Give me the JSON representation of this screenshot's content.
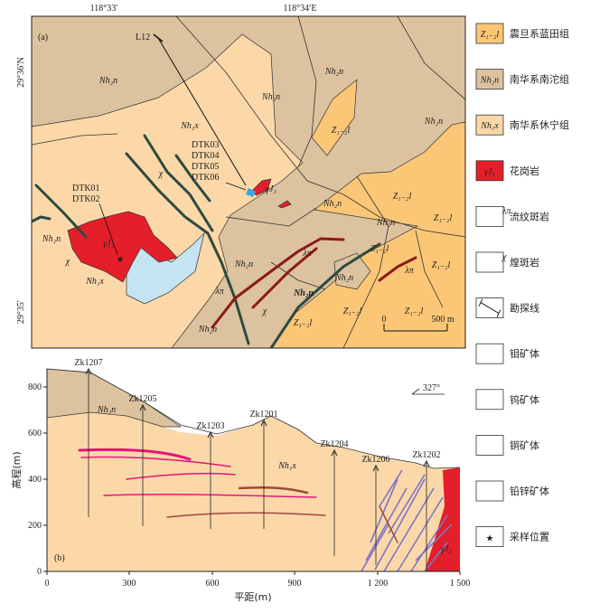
{
  "map": {
    "panel_label": "(a)",
    "lon_labels": [
      "118°33′",
      "118°34′E"
    ],
    "lat_labels": [
      "29°36′N",
      "29°35′"
    ],
    "units": [
      "Nh₂n",
      "Nh₂n",
      "Nh₂n",
      "Nh₂n",
      "Nh₂n",
      "Nh₂n",
      "Nh₂n",
      "Nh₂n",
      "Nh₂n",
      "Nh₂n",
      "Nh₂n",
      "Nh₁x",
      "Nh₁x",
      "Z₁₋₂l",
      "Z₁₋₂l",
      "Z₁₋₂l",
      "Z₁₋₂l",
      "Z₁₋₂l",
      "Z₁₋₂l",
      "Z₁₋₂l",
      "Z₁₋₂l",
      "γJ₃",
      "γJ₃",
      "λπ",
      "λπ",
      "λπ",
      "χ",
      "χ",
      "χ"
    ],
    "line_label": "L12",
    "drill_groups": [
      [
        "DTK03",
        "DTK04",
        "DTK05",
        "DTK06"
      ],
      [
        "DTK01",
        "DTK02"
      ]
    ],
    "scale": [
      "0",
      "500 m"
    ]
  },
  "section": {
    "panel_label": "(b)",
    "azimuth": "327°",
    "y_title": "高程(m)",
    "x_title": "平距(m)",
    "yticks": [
      "0",
      "200",
      "400",
      "600",
      "800"
    ],
    "xticks": [
      "0",
      "300",
      "600",
      "900",
      "1 200",
      "1 500"
    ],
    "drillholes": [
      "Zk1207",
      "Zk1205",
      "Zk1203",
      "Zk1201",
      "Zk1204",
      "Zk1206",
      "Zk1202"
    ],
    "units": [
      "Nh₂n",
      "Nh₁x",
      "γJ₃"
    ]
  },
  "legend": [
    {
      "symbol": "Z₁₋₂l",
      "label": "震旦系蓝田组"
    },
    {
      "symbol": "Nh₂n",
      "label": "南华系南沱组"
    },
    {
      "symbol": "Nh₁x",
      "label": "南华系休宁组"
    },
    {
      "symbol": "γJ₃",
      "label": "花岗岩"
    },
    {
      "symbol": "λπ",
      "label": "流纹斑岩"
    },
    {
      "symbol": "χ",
      "label": "煌斑岩"
    },
    {
      "label": "勘探线"
    },
    {
      "label": "钼矿体"
    },
    {
      "label": "钨矿体"
    },
    {
      "label": "铜矿体"
    },
    {
      "label": "铅锌矿体"
    },
    {
      "label": "采样位置"
    }
  ]
}
